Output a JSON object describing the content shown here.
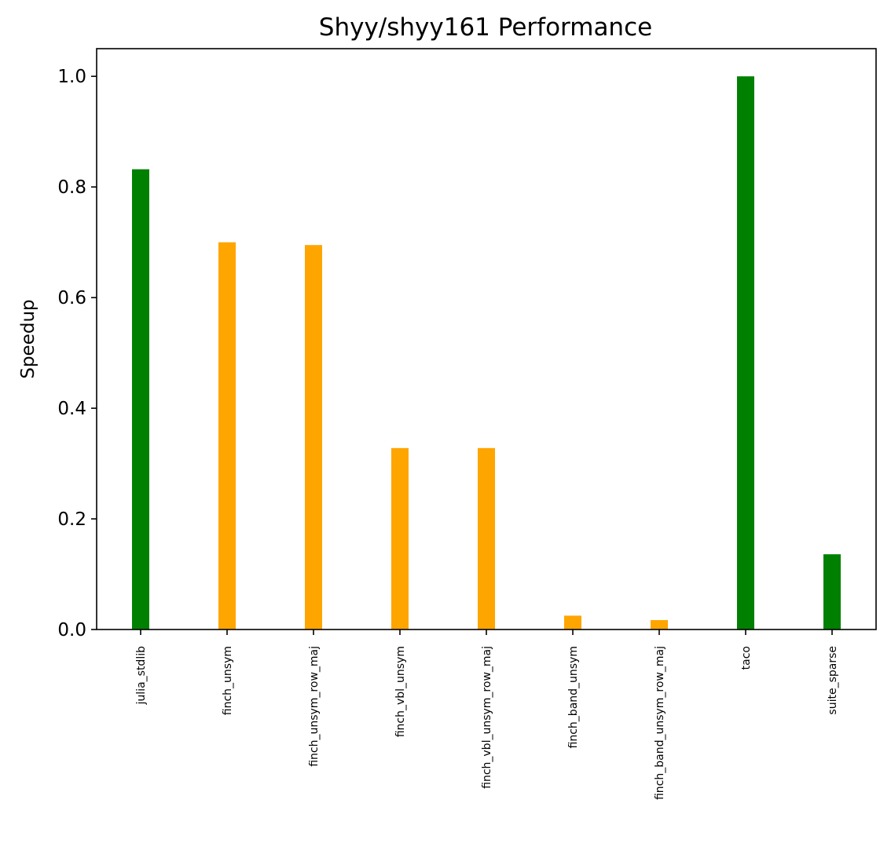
{
  "chart_data": {
    "type": "bar",
    "title": "Shyy/shyy161 Performance",
    "xlabel": "",
    "ylabel": "Speedup",
    "ylim": [
      0,
      1.05
    ],
    "yticks": [
      0.0,
      0.2,
      0.4,
      0.6,
      0.8,
      1.0
    ],
    "ytick_labels": [
      "0.0",
      "0.2",
      "0.4",
      "0.6",
      "0.8",
      "1.0"
    ],
    "grid": false,
    "legend": "none",
    "categories": [
      "julia_stdlib",
      "finch_unsym",
      "finch_unsym_row_maj",
      "finch_vbl_unsym",
      "finch_vbl_unsym_row_maj",
      "finch_band_unsym",
      "finch_band_unsym_row_maj",
      "taco",
      "suite_sparse"
    ],
    "values": [
      0.832,
      0.7,
      0.695,
      0.328,
      0.328,
      0.025,
      0.017,
      1.0,
      0.136
    ],
    "bar_colors": [
      "#008000",
      "#ffa500",
      "#ffa500",
      "#ffa500",
      "#ffa500",
      "#ffa500",
      "#ffa500",
      "#008000",
      "#008000"
    ]
  }
}
